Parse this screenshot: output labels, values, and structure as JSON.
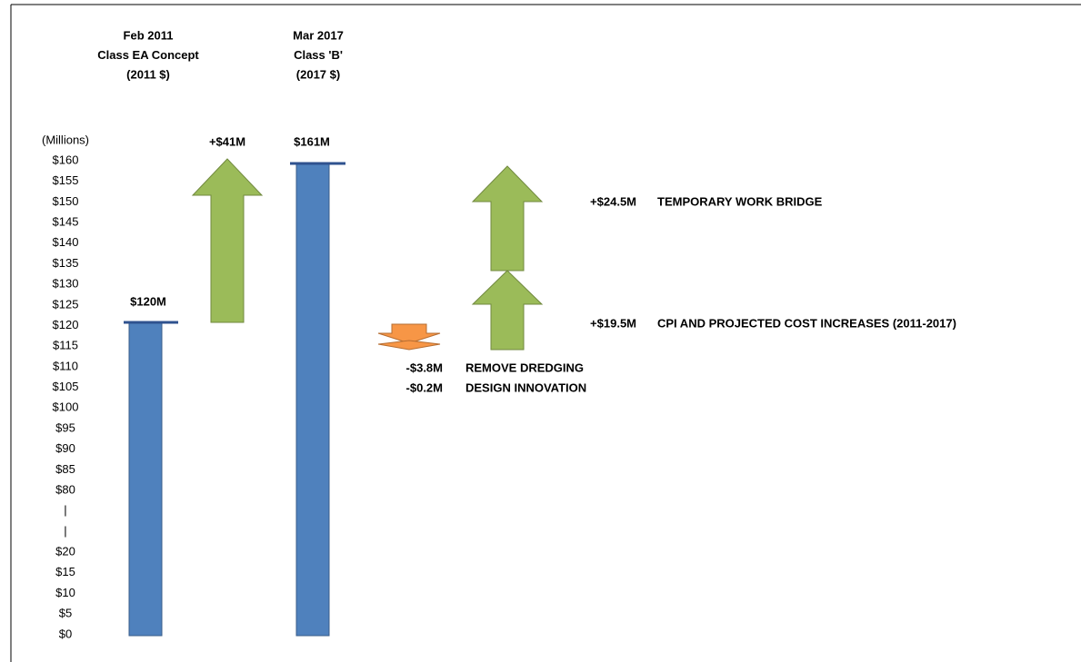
{
  "headers": [
    {
      "lines": [
        "Feb 2011",
        "Class EA Concept",
        "(2011 $)"
      ]
    },
    {
      "lines": [
        "Mar 2017",
        "Class 'B'",
        "(2017 $)"
      ]
    }
  ],
  "axis": {
    "unit": "(Millions)",
    "labels": [
      "$160",
      "$155",
      "$150",
      "$145",
      "$140",
      "$135",
      "$130",
      "$125",
      "$120",
      "$115",
      "$110",
      "$105",
      "$100",
      "$95",
      "$90",
      "$85",
      "$80",
      "|",
      "|",
      "$20",
      "$15",
      "$10",
      "$5",
      "$0"
    ]
  },
  "bars": [
    {
      "label": "$120M"
    },
    {
      "label": "$161M"
    }
  ],
  "changes": [
    {
      "amount": "+$41M"
    },
    {
      "amount": "+$24.5M",
      "description": "TEMPORARY WORK BRIDGE"
    },
    {
      "amount": "+$19.5M",
      "description": "CPI AND PROJECTED COST INCREASES (2011-2017)"
    },
    {
      "amount": "-$3.8M",
      "description": "REMOVE DREDGING"
    },
    {
      "amount": "-$0.2M",
      "description": "DESIGN INNOVATION"
    }
  ]
}
